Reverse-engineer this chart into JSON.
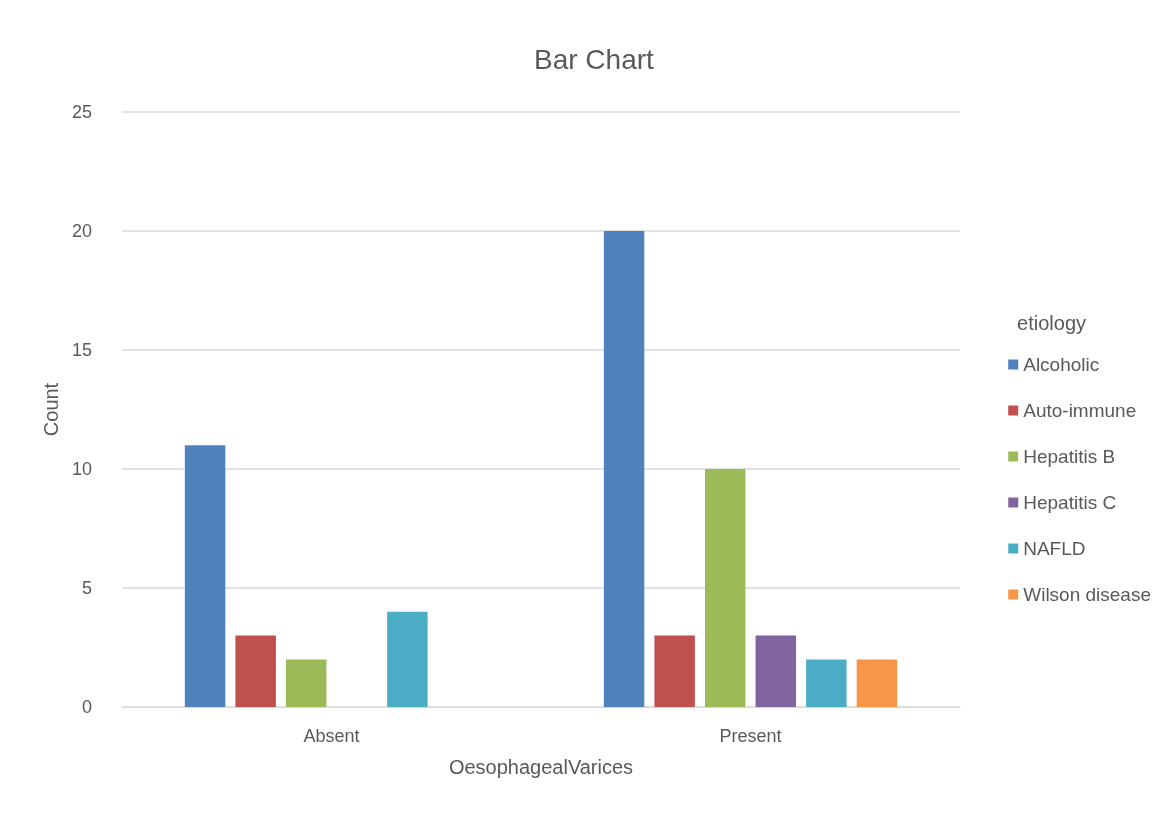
{
  "chart_data": {
    "type": "bar",
    "title": "Bar Chart",
    "xlabel": "OesophagealVarices",
    "ylabel": "Count",
    "legend_title": "etiology",
    "categories": [
      "Absent",
      "Present"
    ],
    "series": [
      {
        "name": "Alcoholic",
        "color": "#4f81bd",
        "values": [
          11,
          20
        ]
      },
      {
        "name": "Auto-immune",
        "color": "#c0504d",
        "values": [
          3,
          3
        ]
      },
      {
        "name": "Hepatitis B",
        "color": "#9bbb59",
        "values": [
          2,
          10
        ]
      },
      {
        "name": "Hepatitis C",
        "color": "#8064a2",
        "values": [
          null,
          3
        ]
      },
      {
        "name": "NAFLD",
        "color": "#4bacc6",
        "values": [
          4,
          2
        ]
      },
      {
        "name": "Wilson disease",
        "color": "#f79646",
        "values": [
          null,
          2
        ]
      }
    ],
    "ylim": [
      0,
      25
    ],
    "yticks": [
      0,
      5,
      10,
      15,
      20,
      25
    ],
    "grid": "y",
    "legend": "right"
  }
}
